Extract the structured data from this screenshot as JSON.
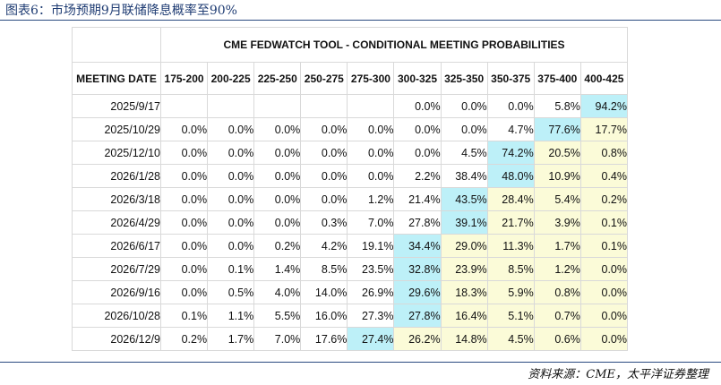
{
  "figure_title": "图表6：市场预期9月联储降息概率至90%",
  "source": "资料来源：CME，太平洋证券整理",
  "colors": {
    "highlight_max": "#bdf0f8",
    "highlight_zone": "#fbfbd8",
    "rule": "#2a4a80"
  },
  "chart_data": {
    "type": "table",
    "title": "CME FEDWATCH TOOL - CONDITIONAL MEETING PROBABILITIES",
    "row_header_label": "MEETING DATE",
    "columns": [
      "175-200",
      "200-225",
      "225-250",
      "250-275",
      "275-300",
      "300-325",
      "325-350",
      "350-375",
      "375-400",
      "400-425"
    ],
    "rows": [
      {
        "date": "2025/9/17",
        "values": [
          "",
          "",
          "",
          "",
          "",
          "0.0%",
          "0.0%",
          "0.0%",
          "5.8%",
          "94.2%"
        ],
        "max_index": 9
      },
      {
        "date": "2025/10/29",
        "values": [
          "0.0%",
          "0.0%",
          "0.0%",
          "0.0%",
          "0.0%",
          "0.0%",
          "0.0%",
          "4.7%",
          "77.6%",
          "17.7%"
        ],
        "max_index": 8
      },
      {
        "date": "2025/12/10",
        "values": [
          "0.0%",
          "0.0%",
          "0.0%",
          "0.0%",
          "0.0%",
          "0.0%",
          "4.5%",
          "74.2%",
          "20.5%",
          "0.8%"
        ],
        "max_index": 7
      },
      {
        "date": "2026/1/28",
        "values": [
          "0.0%",
          "0.0%",
          "0.0%",
          "0.0%",
          "0.0%",
          "2.2%",
          "38.4%",
          "48.0%",
          "10.9%",
          "0.4%"
        ],
        "max_index": 7
      },
      {
        "date": "2026/3/18",
        "values": [
          "0.0%",
          "0.0%",
          "0.0%",
          "0.0%",
          "1.2%",
          "21.4%",
          "43.5%",
          "28.4%",
          "5.4%",
          "0.2%"
        ],
        "max_index": 6
      },
      {
        "date": "2026/4/29",
        "values": [
          "0.0%",
          "0.0%",
          "0.0%",
          "0.3%",
          "7.0%",
          "27.8%",
          "39.1%",
          "21.7%",
          "3.9%",
          "0.1%"
        ],
        "max_index": 6
      },
      {
        "date": "2026/6/17",
        "values": [
          "0.0%",
          "0.0%",
          "0.2%",
          "4.2%",
          "19.1%",
          "34.4%",
          "29.0%",
          "11.3%",
          "1.7%",
          "0.1%"
        ],
        "max_index": 5
      },
      {
        "date": "2026/7/29",
        "values": [
          "0.0%",
          "0.1%",
          "1.4%",
          "8.5%",
          "23.5%",
          "32.8%",
          "23.9%",
          "8.5%",
          "1.2%",
          "0.0%"
        ],
        "max_index": 5
      },
      {
        "date": "2026/9/16",
        "values": [
          "0.0%",
          "0.5%",
          "4.0%",
          "14.0%",
          "26.9%",
          "29.6%",
          "18.3%",
          "5.9%",
          "0.8%",
          "0.0%"
        ],
        "max_index": 5
      },
      {
        "date": "2026/10/28",
        "values": [
          "0.1%",
          "1.1%",
          "5.5%",
          "16.0%",
          "27.3%",
          "27.8%",
          "16.4%",
          "5.1%",
          "0.7%",
          "0.0%"
        ],
        "max_index": 5
      },
      {
        "date": "2026/12/9",
        "values": [
          "0.2%",
          "1.7%",
          "7.0%",
          "17.6%",
          "27.4%",
          "26.2%",
          "14.8%",
          "4.5%",
          "0.6%",
          "0.0%"
        ],
        "max_index": 4
      }
    ]
  }
}
